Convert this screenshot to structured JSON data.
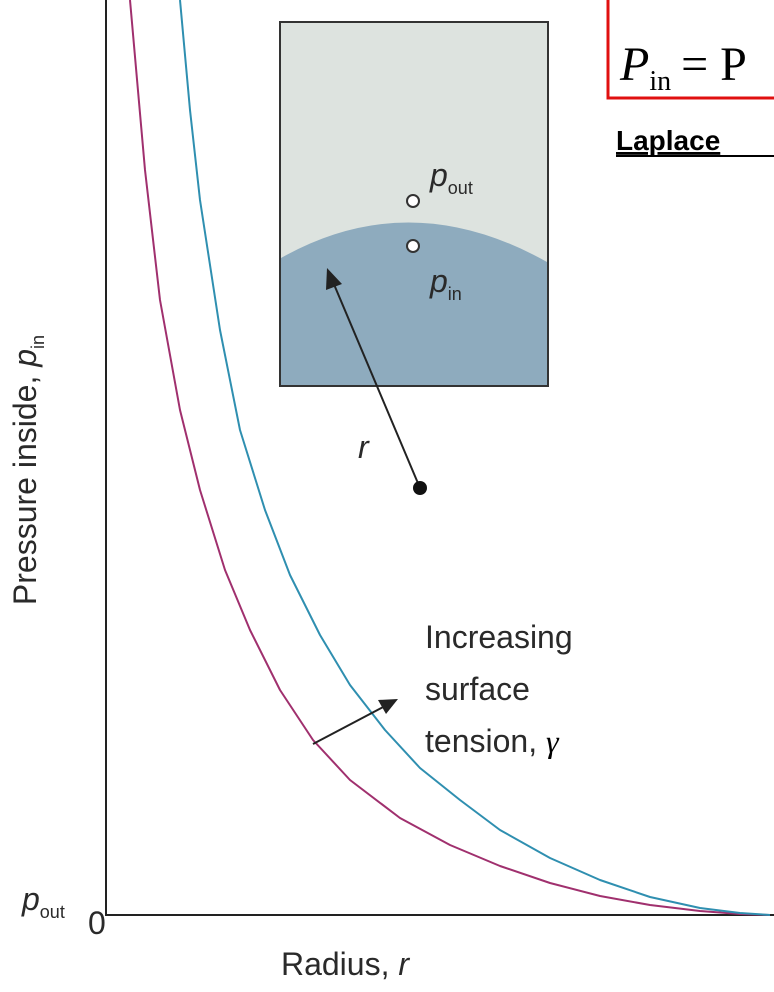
{
  "axes": {
    "y_label": {
      "text": "Pressure inside, ",
      "symbol": "p",
      "subscript": "in"
    },
    "x_label": {
      "text": "Radius, ",
      "symbol": "r"
    },
    "origin": "0",
    "baseline": {
      "symbol": "p",
      "subscript": "out"
    }
  },
  "inset": {
    "outer": {
      "symbol": "p",
      "subscript": "out"
    },
    "inner": {
      "symbol": "p",
      "subscript": "in"
    },
    "radius": "r"
  },
  "annotation": {
    "lines": [
      "Increasing",
      "surface",
      "tension, "
    ],
    "symbol": "γ"
  },
  "equation": {
    "symbol": "P",
    "subscript": "in",
    "rest": "= P"
  },
  "heading": "Laplace"
}
